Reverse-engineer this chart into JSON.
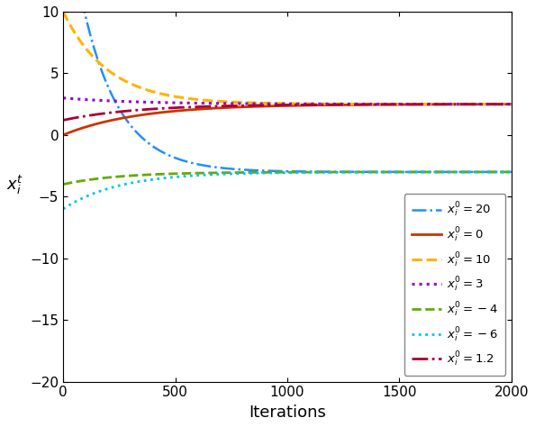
{
  "title": "",
  "xlabel": "Iterations",
  "ylabel": "$x_i^t$",
  "xlim": [
    0,
    2000
  ],
  "ylim": [
    -20,
    10
  ],
  "yticks": [
    -20,
    -15,
    -10,
    -5,
    0,
    5,
    10
  ],
  "xticks": [
    0,
    500,
    1000,
    1500,
    2000
  ],
  "n_points": 2001,
  "series": [
    {
      "label": "$x_i^0 = 20$",
      "color": "#1E90FF",
      "linestyle": "-.",
      "linewidth": 1.8,
      "start": 20,
      "converge_to": -3.0,
      "speed": 0.006
    },
    {
      "label": "$x_i^0 = 0$",
      "color": "#CC3300",
      "linestyle": "-",
      "linewidth": 2.0,
      "start": 0,
      "converge_to": 2.5,
      "speed": 0.003
    },
    {
      "label": "$x_i^0 = 10$",
      "color": "#FFB300",
      "linestyle": "--",
      "linewidth": 2.2,
      "start": 10,
      "converge_to": 2.5,
      "speed": 0.005
    },
    {
      "label": "$x_i^0 = 3$",
      "color": "#9400D3",
      "linestyle": ":",
      "linewidth": 2.2,
      "start": 3,
      "converge_to": 2.5,
      "speed": 0.003
    },
    {
      "label": "$x_i^0 = -4$",
      "color": "#66AA00",
      "linestyle": "--",
      "linewidth": 2.0,
      "start": -4,
      "converge_to": -3.0,
      "speed": 0.004
    },
    {
      "label": "$x_i^0 = -6$",
      "color": "#00BFFF",
      "linestyle": ":",
      "linewidth": 2.0,
      "start": -6,
      "converge_to": -3.0,
      "speed": 0.004
    },
    {
      "label": "$x_i^0 = 1.2$",
      "color": "#AA0033",
      "linestyle": "-.",
      "linewidth": 2.0,
      "start": 1.2,
      "converge_to": 2.5,
      "speed": 0.003
    }
  ]
}
